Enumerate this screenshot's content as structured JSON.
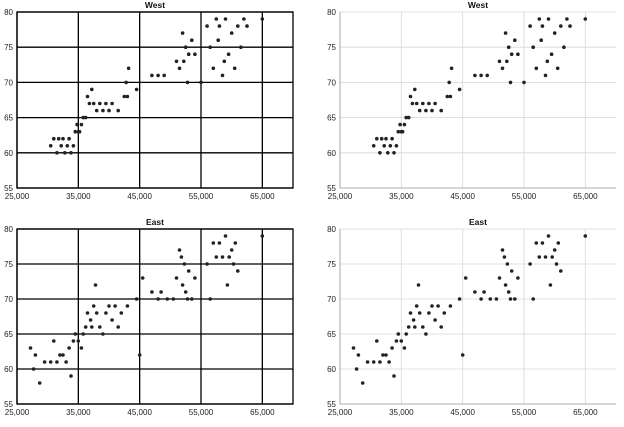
{
  "chart_data": [
    {
      "type": "scatter",
      "title": "West",
      "grid_style": "heavy",
      "xlim": [
        25000,
        70000
      ],
      "ylim": [
        55,
        80
      ],
      "xticks": [
        25000,
        35000,
        45000,
        55000,
        65000
      ],
      "xtick_labels": [
        "25,000",
        "35,000",
        "45,000",
        "55,000",
        "65,000"
      ],
      "yticks": [
        55,
        60,
        65,
        70,
        75,
        80
      ],
      "ytick_labels": [
        "55",
        "60",
        "65",
        "70",
        "75",
        "80"
      ],
      "points": [
        [
          30500,
          61
        ],
        [
          31000,
          62
        ],
        [
          31500,
          60
        ],
        [
          31800,
          62
        ],
        [
          32200,
          61
        ],
        [
          32500,
          62
        ],
        [
          32800,
          60
        ],
        [
          33200,
          61
        ],
        [
          33500,
          62
        ],
        [
          33800,
          60
        ],
        [
          34200,
          61
        ],
        [
          34500,
          63
        ],
        [
          34800,
          64
        ],
        [
          35000,
          63
        ],
        [
          35200,
          63
        ],
        [
          35500,
          64
        ],
        [
          35800,
          65
        ],
        [
          36200,
          65
        ],
        [
          36500,
          68
        ],
        [
          36800,
          67
        ],
        [
          37200,
          69
        ],
        [
          37500,
          67
        ],
        [
          38000,
          66
        ],
        [
          38500,
          67
        ],
        [
          39000,
          66
        ],
        [
          39500,
          67
        ],
        [
          40000,
          66
        ],
        [
          40500,
          67
        ],
        [
          41500,
          66
        ],
        [
          42500,
          68
        ],
        [
          42800,
          70
        ],
        [
          43000,
          68
        ],
        [
          43200,
          72
        ],
        [
          44500,
          69
        ],
        [
          47000,
          71
        ],
        [
          48000,
          71
        ],
        [
          49000,
          71
        ],
        [
          51000,
          73
        ],
        [
          51500,
          72
        ],
        [
          52000,
          77
        ],
        [
          52200,
          73
        ],
        [
          52500,
          75
        ],
        [
          52800,
          70
        ],
        [
          53000,
          74
        ],
        [
          53500,
          76
        ],
        [
          54000,
          74
        ],
        [
          55000,
          70
        ],
        [
          56000,
          78
        ],
        [
          56500,
          75
        ],
        [
          57000,
          72
        ],
        [
          57500,
          79
        ],
        [
          57800,
          76
        ],
        [
          58000,
          78
        ],
        [
          58500,
          71
        ],
        [
          58800,
          73
        ],
        [
          59000,
          79
        ],
        [
          59500,
          74
        ],
        [
          60000,
          77
        ],
        [
          60500,
          72
        ],
        [
          61000,
          78
        ],
        [
          61500,
          75
        ],
        [
          62000,
          79
        ],
        [
          62500,
          78
        ],
        [
          65000,
          79
        ]
      ]
    },
    {
      "type": "scatter",
      "title": "West",
      "grid_style": "light",
      "xlim": [
        25000,
        70000
      ],
      "ylim": [
        55,
        80
      ],
      "xticks": [
        25000,
        35000,
        45000,
        55000,
        65000
      ],
      "xtick_labels": [
        "25,000",
        "35,000",
        "45,000",
        "55,000",
        "65,000"
      ],
      "yticks": [
        55,
        60,
        65,
        70,
        75,
        80
      ],
      "ytick_labels": [
        "55",
        "60",
        "65",
        "70",
        "75",
        "80"
      ],
      "points": [
        [
          30500,
          61
        ],
        [
          31000,
          62
        ],
        [
          31500,
          60
        ],
        [
          31800,
          62
        ],
        [
          32200,
          61
        ],
        [
          32500,
          62
        ],
        [
          32800,
          60
        ],
        [
          33200,
          61
        ],
        [
          33500,
          62
        ],
        [
          33800,
          60
        ],
        [
          34200,
          61
        ],
        [
          34500,
          63
        ],
        [
          34800,
          64
        ],
        [
          35000,
          63
        ],
        [
          35200,
          63
        ],
        [
          35500,
          64
        ],
        [
          35800,
          65
        ],
        [
          36200,
          65
        ],
        [
          36500,
          68
        ],
        [
          36800,
          67
        ],
        [
          37200,
          69
        ],
        [
          37500,
          67
        ],
        [
          38000,
          66
        ],
        [
          38500,
          67
        ],
        [
          39000,
          66
        ],
        [
          39500,
          67
        ],
        [
          40000,
          66
        ],
        [
          40500,
          67
        ],
        [
          41500,
          66
        ],
        [
          42500,
          68
        ],
        [
          42800,
          70
        ],
        [
          43000,
          68
        ],
        [
          43200,
          72
        ],
        [
          44500,
          69
        ],
        [
          47000,
          71
        ],
        [
          48000,
          71
        ],
        [
          49000,
          71
        ],
        [
          51000,
          73
        ],
        [
          51500,
          72
        ],
        [
          52000,
          77
        ],
        [
          52200,
          73
        ],
        [
          52500,
          75
        ],
        [
          52800,
          70
        ],
        [
          53000,
          74
        ],
        [
          53500,
          76
        ],
        [
          54000,
          74
        ],
        [
          55000,
          70
        ],
        [
          56000,
          78
        ],
        [
          56500,
          75
        ],
        [
          57000,
          72
        ],
        [
          57500,
          79
        ],
        [
          57800,
          76
        ],
        [
          58000,
          78
        ],
        [
          58500,
          71
        ],
        [
          58800,
          73
        ],
        [
          59000,
          79
        ],
        [
          59500,
          74
        ],
        [
          60000,
          77
        ],
        [
          60500,
          72
        ],
        [
          61000,
          78
        ],
        [
          61500,
          75
        ],
        [
          62000,
          79
        ],
        [
          62500,
          78
        ],
        [
          65000,
          79
        ]
      ]
    },
    {
      "type": "scatter",
      "title": "East",
      "grid_style": "heavy",
      "xlim": [
        25000,
        70000
      ],
      "ylim": [
        55,
        80
      ],
      "xticks": [
        25000,
        35000,
        45000,
        55000,
        65000
      ],
      "xtick_labels": [
        "25,000",
        "35,000",
        "45,000",
        "55,000",
        "65,000"
      ],
      "yticks": [
        55,
        60,
        65,
        70,
        75,
        80
      ],
      "ytick_labels": [
        "55",
        "60",
        "65",
        "70",
        "75",
        "80"
      ],
      "points": [
        [
          27200,
          63
        ],
        [
          27700,
          60
        ],
        [
          28000,
          62
        ],
        [
          28700,
          58
        ],
        [
          29500,
          61
        ],
        [
          30500,
          61
        ],
        [
          31000,
          64
        ],
        [
          31500,
          61
        ],
        [
          32000,
          62
        ],
        [
          32500,
          62
        ],
        [
          33000,
          61
        ],
        [
          33500,
          63
        ],
        [
          33800,
          59
        ],
        [
          34200,
          64
        ],
        [
          34500,
          65
        ],
        [
          35000,
          64
        ],
        [
          35500,
          63
        ],
        [
          35800,
          65
        ],
        [
          36200,
          66
        ],
        [
          36500,
          68
        ],
        [
          37000,
          67
        ],
        [
          37200,
          66
        ],
        [
          37500,
          69
        ],
        [
          37800,
          72
        ],
        [
          38000,
          68
        ],
        [
          38500,
          66
        ],
        [
          39000,
          65
        ],
        [
          39500,
          68
        ],
        [
          40000,
          69
        ],
        [
          40500,
          67
        ],
        [
          41000,
          69
        ],
        [
          41500,
          66
        ],
        [
          42000,
          68
        ],
        [
          43000,
          69
        ],
        [
          44500,
          70
        ],
        [
          45000,
          62
        ],
        [
          45500,
          73
        ],
        [
          47000,
          71
        ],
        [
          48000,
          70
        ],
        [
          48500,
          71
        ],
        [
          49500,
          70
        ],
        [
          50500,
          70
        ],
        [
          51000,
          73
        ],
        [
          51500,
          77
        ],
        [
          51800,
          76
        ],
        [
          52000,
          72
        ],
        [
          52300,
          75
        ],
        [
          52500,
          71
        ],
        [
          52800,
          70
        ],
        [
          53000,
          74
        ],
        [
          53500,
          70
        ],
        [
          54000,
          73
        ],
        [
          56000,
          75
        ],
        [
          56500,
          70
        ],
        [
          57000,
          78
        ],
        [
          57500,
          76
        ],
        [
          58000,
          78
        ],
        [
          58500,
          76
        ],
        [
          59000,
          79
        ],
        [
          59300,
          72
        ],
        [
          59600,
          76
        ],
        [
          60000,
          77
        ],
        [
          60300,
          75
        ],
        [
          60600,
          78
        ],
        [
          61000,
          74
        ],
        [
          65000,
          79
        ]
      ]
    },
    {
      "type": "scatter",
      "title": "East",
      "grid_style": "light",
      "xlim": [
        25000,
        70000
      ],
      "ylim": [
        55,
        80
      ],
      "xticks": [
        25000,
        35000,
        45000,
        55000,
        65000
      ],
      "xtick_labels": [
        "25,000",
        "35,000",
        "45,000",
        "55,000",
        "65,000"
      ],
      "yticks": [
        55,
        60,
        65,
        70,
        75,
        80
      ],
      "ytick_labels": [
        "55",
        "60",
        "65",
        "70",
        "75",
        "80"
      ],
      "points": [
        [
          27200,
          63
        ],
        [
          27700,
          60
        ],
        [
          28000,
          62
        ],
        [
          28700,
          58
        ],
        [
          29500,
          61
        ],
        [
          30500,
          61
        ],
        [
          31000,
          64
        ],
        [
          31500,
          61
        ],
        [
          32000,
          62
        ],
        [
          32500,
          62
        ],
        [
          33000,
          61
        ],
        [
          33500,
          63
        ],
        [
          33800,
          59
        ],
        [
          34200,
          64
        ],
        [
          34500,
          65
        ],
        [
          35000,
          64
        ],
        [
          35500,
          63
        ],
        [
          35800,
          65
        ],
        [
          36200,
          66
        ],
        [
          36500,
          68
        ],
        [
          37000,
          67
        ],
        [
          37200,
          66
        ],
        [
          37500,
          69
        ],
        [
          37800,
          72
        ],
        [
          38000,
          68
        ],
        [
          38500,
          66
        ],
        [
          39000,
          65
        ],
        [
          39500,
          68
        ],
        [
          40000,
          69
        ],
        [
          40500,
          67
        ],
        [
          41000,
          69
        ],
        [
          41500,
          66
        ],
        [
          42000,
          68
        ],
        [
          43000,
          69
        ],
        [
          44500,
          70
        ],
        [
          45000,
          62
        ],
        [
          45500,
          73
        ],
        [
          47000,
          71
        ],
        [
          48000,
          70
        ],
        [
          48500,
          71
        ],
        [
          49500,
          70
        ],
        [
          50500,
          70
        ],
        [
          51000,
          73
        ],
        [
          51500,
          77
        ],
        [
          51800,
          76
        ],
        [
          52000,
          72
        ],
        [
          52300,
          75
        ],
        [
          52500,
          71
        ],
        [
          52800,
          70
        ],
        [
          53000,
          74
        ],
        [
          53500,
          70
        ],
        [
          54000,
          73
        ],
        [
          56000,
          75
        ],
        [
          56500,
          70
        ],
        [
          57000,
          78
        ],
        [
          57500,
          76
        ],
        [
          58000,
          78
        ],
        [
          58500,
          76
        ],
        [
          59000,
          79
        ],
        [
          59300,
          72
        ],
        [
          59600,
          76
        ],
        [
          60000,
          77
        ],
        [
          60300,
          75
        ],
        [
          60600,
          78
        ],
        [
          61000,
          74
        ],
        [
          65000,
          79
        ]
      ]
    }
  ]
}
